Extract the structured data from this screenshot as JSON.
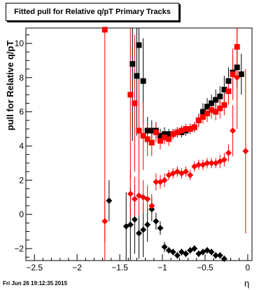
{
  "chart_data": {
    "type": "scatter",
    "title": "Fitted pull for Relative q/pT  Primary Tracks",
    "xlabel": "η",
    "ylabel": "pull for Relative q/pT",
    "xlim": [
      -2.6,
      0.05
    ],
    "ylim": [
      -2.7,
      10.9
    ],
    "xticks": [
      -2.5,
      -2,
      -1.5,
      -1,
      -0.5,
      0
    ],
    "yticks": [
      -2,
      0,
      2,
      4,
      6,
      8,
      10
    ],
    "grid": false,
    "series": [
      {
        "color": "#000000",
        "marker": "square",
        "points": [
          {
            "x": -1.35,
            "y": 8.8,
            "err": 4.5
          },
          {
            "x": -1.3,
            "y": 8.1,
            "err": 3.5
          },
          {
            "x": -1.275,
            "y": 9.9,
            "err": 4.3
          },
          {
            "x": -1.225,
            "y": 7.8,
            "err": 2.5
          },
          {
            "x": -1.275,
            "y": 4.9,
            "err": 1.5
          },
          {
            "x": -1.175,
            "y": 4.9,
            "err": 0.8
          },
          {
            "x": -1.125,
            "y": 4.9,
            "err": 0.6
          },
          {
            "x": -1.075,
            "y": 4.9,
            "err": 0.5
          },
          {
            "x": -1.025,
            "y": 4.6,
            "err": 0.4
          },
          {
            "x": -0.975,
            "y": 4.7,
            "err": 0.4
          },
          {
            "x": -0.925,
            "y": 4.7,
            "err": 0.3
          },
          {
            "x": -0.875,
            "y": 4.7,
            "err": 0.3
          },
          {
            "x": -0.825,
            "y": 4.8,
            "err": 0.3
          },
          {
            "x": -0.775,
            "y": 4.8,
            "err": 0.3
          },
          {
            "x": -0.725,
            "y": 4.9,
            "err": 0.3
          },
          {
            "x": -0.675,
            "y": 5.0,
            "err": 0.3
          },
          {
            "x": -0.625,
            "y": 5.1,
            "err": 0.3
          },
          {
            "x": -0.575,
            "y": 5.5,
            "err": 0.4
          },
          {
            "x": -0.525,
            "y": 6.0,
            "err": 0.5
          },
          {
            "x": -0.475,
            "y": 6.3,
            "err": 0.5
          },
          {
            "x": -0.425,
            "y": 6.5,
            "err": 0.5
          },
          {
            "x": -0.375,
            "y": 6.7,
            "err": 0.6
          },
          {
            "x": -0.325,
            "y": 6.9,
            "err": 0.6
          },
          {
            "x": -0.275,
            "y": 7.3,
            "err": 0.8
          },
          {
            "x": -0.225,
            "y": 7.8,
            "err": 0.8
          },
          {
            "x": -0.175,
            "y": 8.3,
            "err": 1.0
          },
          {
            "x": -0.125,
            "y": 8.6,
            "err": 1.2
          },
          {
            "x": -0.075,
            "y": 8.2,
            "err": 1.2
          }
        ]
      },
      {
        "color": "#ff0000",
        "marker": "square",
        "points": [
          {
            "x": -1.675,
            "y": 10.8,
            "err": 14.0
          },
          {
            "x": -1.375,
            "y": 7.0,
            "err": 5.0
          },
          {
            "x": -1.325,
            "y": 6.5,
            "err": 4.0
          },
          {
            "x": -1.275,
            "y": 4.9,
            "err": 3.0
          },
          {
            "x": -1.225,
            "y": 4.6,
            "err": 2.0
          },
          {
            "x": -1.175,
            "y": 4.4,
            "err": 1.0
          },
          {
            "x": -1.125,
            "y": 4.2,
            "err": 0.8
          },
          {
            "x": -1.075,
            "y": 4.8,
            "err": 0.6
          },
          {
            "x": -1.025,
            "y": 4.3,
            "err": 0.5
          },
          {
            "x": -0.975,
            "y": 4.5,
            "err": 0.4
          },
          {
            "x": -0.925,
            "y": 4.4,
            "err": 0.4
          },
          {
            "x": -0.875,
            "y": 4.7,
            "err": 0.3
          },
          {
            "x": -0.825,
            "y": 4.8,
            "err": 0.3
          },
          {
            "x": -0.775,
            "y": 4.9,
            "err": 0.3
          },
          {
            "x": -0.725,
            "y": 5.0,
            "err": 0.3
          },
          {
            "x": -0.675,
            "y": 5.0,
            "err": 0.3
          },
          {
            "x": -0.625,
            "y": 5.1,
            "err": 0.3
          },
          {
            "x": -0.575,
            "y": 5.5,
            "err": 0.4
          },
          {
            "x": -0.525,
            "y": 5.7,
            "err": 0.4
          },
          {
            "x": -0.475,
            "y": 5.9,
            "err": 0.5
          },
          {
            "x": -0.425,
            "y": 6.1,
            "err": 0.5
          },
          {
            "x": -0.375,
            "y": 6.0,
            "err": 0.5
          },
          {
            "x": -0.325,
            "y": 6.2,
            "err": 0.6
          },
          {
            "x": -0.275,
            "y": 6.4,
            "err": 0.6
          },
          {
            "x": -0.225,
            "y": 7.2,
            "err": 0.8
          },
          {
            "x": -0.175,
            "y": 8.2,
            "err": 1.5
          },
          {
            "x": -0.125,
            "y": 9.8,
            "err": 2.0
          }
        ]
      },
      {
        "color": "#000000",
        "marker": "diamond",
        "points": [
          {
            "x": -1.625,
            "y": 0.8,
            "err": 1.2
          },
          {
            "x": -1.425,
            "y": -0.7,
            "err": 2.0
          },
          {
            "x": -1.375,
            "y": -0.6,
            "err": 2.2
          },
          {
            "x": -1.325,
            "y": -0.3,
            "err": 2.0
          },
          {
            "x": -1.275,
            "y": -1.1,
            "err": 1.5
          },
          {
            "x": -1.225,
            "y": -0.9,
            "err": 1.6
          },
          {
            "x": -1.175,
            "y": -0.6,
            "err": 1.0
          },
          {
            "x": -1.125,
            "y": 0.3,
            "err": 0.7
          },
          {
            "x": -1.075,
            "y": -0.4,
            "err": 0.5
          },
          {
            "x": -1.025,
            "y": -0.8,
            "err": 0.4
          },
          {
            "x": -0.975,
            "y": -1.9,
            "err": 0.3
          },
          {
            "x": -0.925,
            "y": -2.1,
            "err": 0.2
          },
          {
            "x": -0.875,
            "y": -2.2,
            "err": 0.2
          },
          {
            "x": -0.825,
            "y": -2.4,
            "err": 0.2
          },
          {
            "x": -0.775,
            "y": -2.2,
            "err": 0.2
          },
          {
            "x": -0.725,
            "y": -2.3,
            "err": 0.2
          },
          {
            "x": -0.675,
            "y": -2.1,
            "err": 0.2
          },
          {
            "x": -0.625,
            "y": -2.0,
            "err": 0.2
          },
          {
            "x": -0.575,
            "y": -2.3,
            "err": 0.2
          },
          {
            "x": -0.525,
            "y": -2.2,
            "err": 0.2
          },
          {
            "x": -0.475,
            "y": -2.1,
            "err": 0.2
          },
          {
            "x": -0.425,
            "y": -2.2,
            "err": 0.2
          },
          {
            "x": -0.375,
            "y": -2.4,
            "err": 0.2
          },
          {
            "x": -0.325,
            "y": -2.4,
            "err": 0.2
          },
          {
            "x": -0.275,
            "y": -2.6,
            "err": 0.2
          }
        ]
      },
      {
        "color": "#ff0000",
        "marker": "diamond",
        "points": [
          {
            "x": -1.675,
            "y": -0.4,
            "err": 1.2
          },
          {
            "x": -1.375,
            "y": 1.2,
            "err": 1.4
          },
          {
            "x": -1.325,
            "y": 0.9,
            "err": 1.3
          },
          {
            "x": -1.275,
            "y": 1.1,
            "err": 1.2
          },
          {
            "x": -1.225,
            "y": 1.0,
            "err": 1.0
          },
          {
            "x": -1.175,
            "y": 0.9,
            "err": 0.8
          },
          {
            "x": -1.125,
            "y": 0.5,
            "err": 0.7
          },
          {
            "x": -1.075,
            "y": 1.9,
            "err": 0.5
          },
          {
            "x": -1.025,
            "y": 1.9,
            "err": 0.4
          },
          {
            "x": -0.975,
            "y": 2.0,
            "err": 0.4
          },
          {
            "x": -0.925,
            "y": 2.3,
            "err": 0.3
          },
          {
            "x": -0.875,
            "y": 2.4,
            "err": 0.3
          },
          {
            "x": -0.825,
            "y": 2.5,
            "err": 0.3
          },
          {
            "x": -0.775,
            "y": 2.4,
            "err": 0.3
          },
          {
            "x": -0.725,
            "y": 2.5,
            "err": 0.3
          },
          {
            "x": -0.675,
            "y": 2.3,
            "err": 0.3
          },
          {
            "x": -0.625,
            "y": 2.8,
            "err": 0.3
          },
          {
            "x": -0.575,
            "y": 2.9,
            "err": 0.3
          },
          {
            "x": -0.525,
            "y": 2.9,
            "err": 0.3
          },
          {
            "x": -0.475,
            "y": 3.0,
            "err": 0.3
          },
          {
            "x": -0.425,
            "y": 3.0,
            "err": 0.3
          },
          {
            "x": -0.375,
            "y": 3.0,
            "err": 0.3
          },
          {
            "x": -0.325,
            "y": 3.1,
            "err": 0.4
          },
          {
            "x": -0.275,
            "y": 3.2,
            "err": 0.4
          },
          {
            "x": -0.225,
            "y": 3.6,
            "err": 0.5
          },
          {
            "x": -0.175,
            "y": 4.9,
            "err": 1.5
          },
          {
            "x": -0.125,
            "y": 8.0,
            "err": 3.0
          },
          {
            "x": -0.025,
            "y": 3.7,
            "err": 4.8
          }
        ]
      }
    ]
  },
  "footer": {
    "timestamp": "Fri Jun 26 19:12:35 2015"
  }
}
